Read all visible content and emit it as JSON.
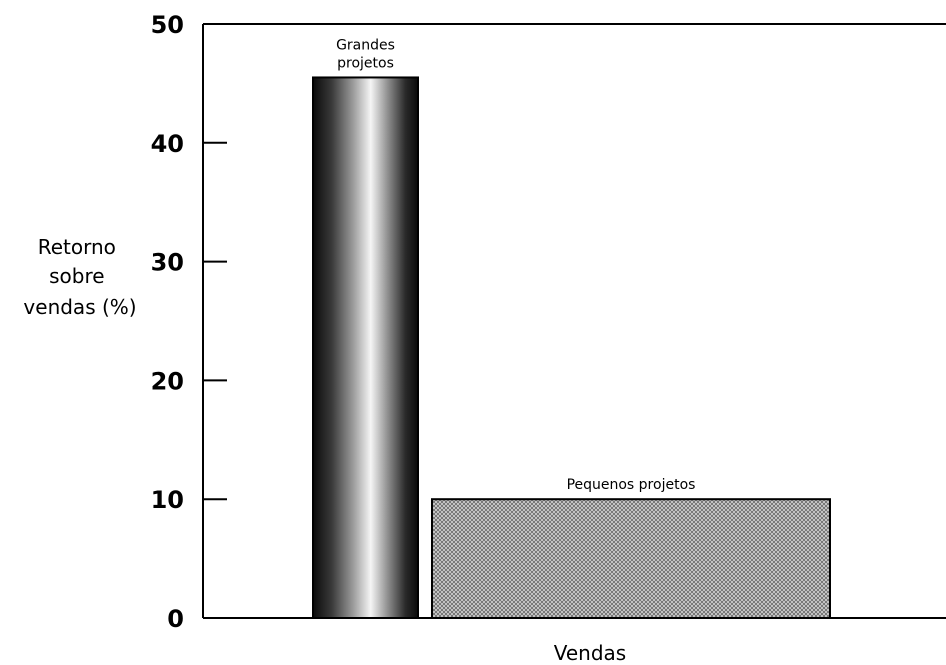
{
  "chart_data": {
    "type": "bar",
    "categories": [
      "Grandes projetos",
      "Pequenos projetos"
    ],
    "values": [
      45.5,
      10
    ],
    "bar_label_lines": [
      [
        "Grandes",
        "projetos"
      ],
      [
        "Pequenos projetos"
      ]
    ],
    "xlabel": "Vendas",
    "ylabel_lines": [
      "Retorno",
      "sobre",
      "vendas (%)"
    ],
    "ylim": [
      0,
      50
    ],
    "yticks": [
      0,
      10,
      20,
      30,
      40,
      50
    ],
    "grid": false,
    "legend": "none",
    "bar_styles": [
      "metallic-gradient",
      "crosshatch"
    ],
    "colors": {
      "axis": "#000000",
      "bar_dark": "#111111",
      "bar_light": "#f2f2f2",
      "hatch": "#9a9a9a",
      "background": "#ffffff"
    }
  }
}
